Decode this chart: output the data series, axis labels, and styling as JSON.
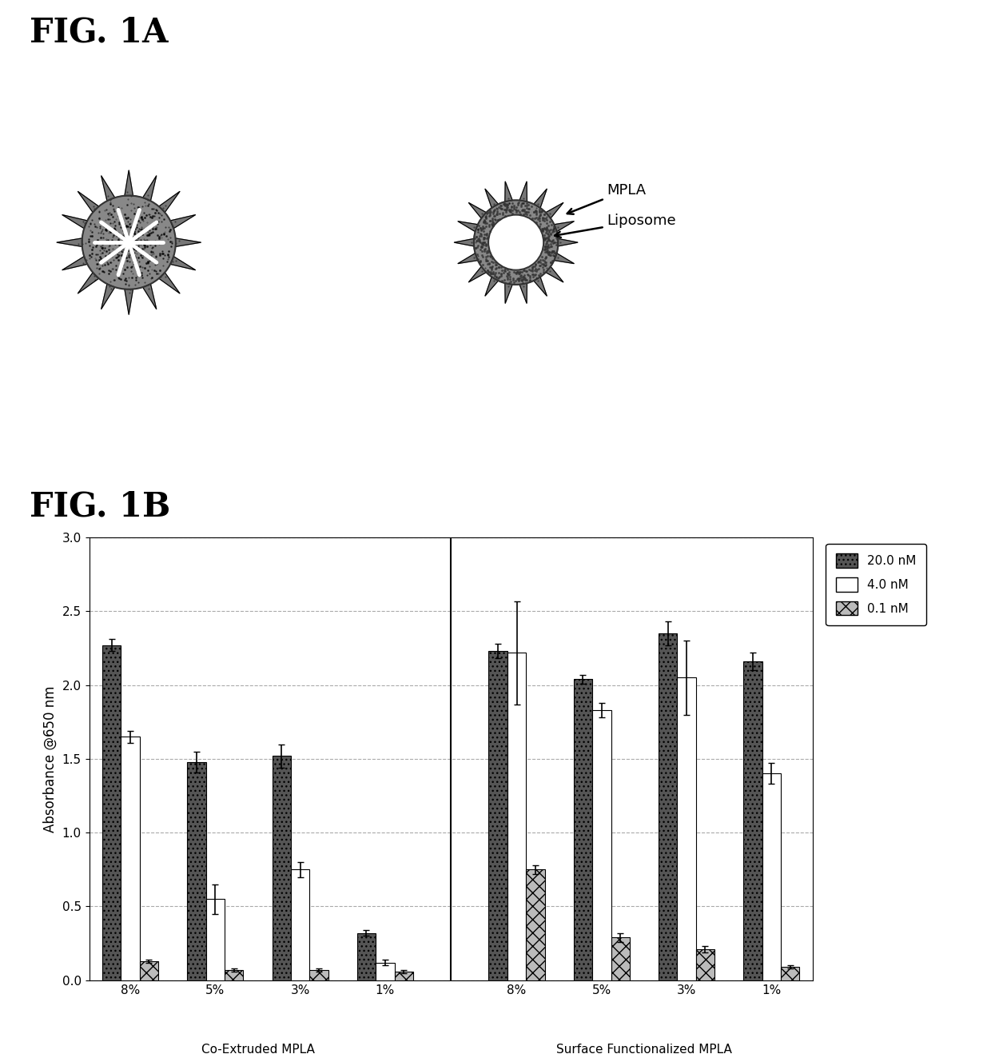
{
  "fig1a_title": "FIG. 1A",
  "fig1b_title": "FIG. 1B",
  "ylabel": "Absorbance @650 nm",
  "ylim": [
    0,
    3
  ],
  "yticks": [
    0,
    0.5,
    1,
    1.5,
    2,
    2.5,
    3
  ],
  "groups": [
    "8%",
    "5%",
    "3%",
    "1%",
    "8%",
    "5%",
    "3%",
    "1%"
  ],
  "group_labels": [
    "Co-Extruded MPLA",
    "Surface Functionalized MPLA"
  ],
  "bar_20nM": [
    2.27,
    1.48,
    1.52,
    0.32,
    2.23,
    2.04,
    2.35,
    2.16
  ],
  "bar_4nM": [
    1.65,
    0.55,
    0.75,
    0.12,
    2.22,
    1.83,
    2.05,
    1.4
  ],
  "bar_01nM": [
    0.13,
    0.07,
    0.07,
    0.06,
    0.75,
    0.29,
    0.21,
    0.09
  ],
  "err_20nM": [
    0.04,
    0.07,
    0.08,
    0.02,
    0.05,
    0.03,
    0.08,
    0.06
  ],
  "err_4nM": [
    0.04,
    0.1,
    0.05,
    0.02,
    0.35,
    0.05,
    0.25,
    0.07
  ],
  "err_01nM": [
    0.01,
    0.01,
    0.01,
    0.01,
    0.03,
    0.03,
    0.02,
    0.01
  ],
  "skip_4nM_idx": [],
  "background_color": "#ffffff",
  "grid_color": "#aaaaaa",
  "bar_width": 0.22
}
